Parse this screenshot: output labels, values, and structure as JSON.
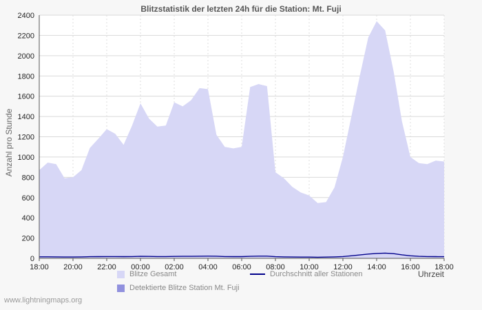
{
  "footer": "www.lightningmaps.org",
  "chart_data": {
    "type": "area",
    "title": "Blitzstatistik der letzten 24h für die Station: Mt. Fuji",
    "xlabel": "Uhrzeit",
    "ylabel": "Anzahl pro Stunde",
    "ylim": [
      0,
      2400
    ],
    "ytick_step": 200,
    "grid": true,
    "legend_position": "bottom",
    "x_start": "18:00",
    "x_end": "18:00",
    "x_step_minutes": 30,
    "x_tick_labels": [
      "18:00",
      "20:00",
      "22:00",
      "00:00",
      "02:00",
      "04:00",
      "06:00",
      "08:00",
      "10:00",
      "12:00",
      "14:00",
      "16:00",
      "18:00"
    ],
    "series": [
      {
        "name": "Blitze Gesamt",
        "type": "area",
        "color": "#d7d7f6",
        "values": [
          870,
          945,
          930,
          790,
          800,
          870,
          1090,
          1180,
          1275,
          1230,
          1120,
          1310,
          1530,
          1380,
          1300,
          1310,
          1540,
          1500,
          1560,
          1680,
          1670,
          1220,
          1100,
          1085,
          1100,
          1690,
          1720,
          1700,
          850,
          790,
          705,
          650,
          620,
          545,
          555,
          700,
          1000,
          1400,
          1800,
          2180,
          2340,
          2250,
          1850,
          1350,
          1000,
          940,
          930,
          965,
          955
        ]
      },
      {
        "name": "Detektierte Blitze Station Mt. Fuji",
        "type": "area",
        "color": "#9191de",
        "values": [
          0,
          0,
          0,
          0,
          0,
          0,
          0,
          0,
          0,
          0,
          0,
          0,
          0,
          0,
          0,
          0,
          0,
          0,
          0,
          0,
          0,
          0,
          0,
          0,
          0,
          0,
          0,
          0,
          0,
          0,
          0,
          0,
          0,
          0,
          0,
          0,
          0,
          0,
          0,
          0,
          0,
          0,
          0,
          0,
          0,
          0,
          0,
          0,
          0
        ]
      },
      {
        "name": "Durchschnitt aller Stationen",
        "type": "line",
        "color": "#00008b",
        "values": [
          15,
          15,
          14,
          13,
          13,
          14,
          16,
          17,
          18,
          18,
          17,
          18,
          20,
          19,
          18,
          18,
          19,
          20,
          20,
          21,
          22,
          21,
          18,
          17,
          17,
          20,
          22,
          22,
          16,
          14,
          13,
          12,
          12,
          11,
          12,
          14,
          18,
          25,
          33,
          42,
          48,
          52,
          46,
          35,
          25,
          20,
          18,
          17,
          16
        ]
      }
    ]
  }
}
